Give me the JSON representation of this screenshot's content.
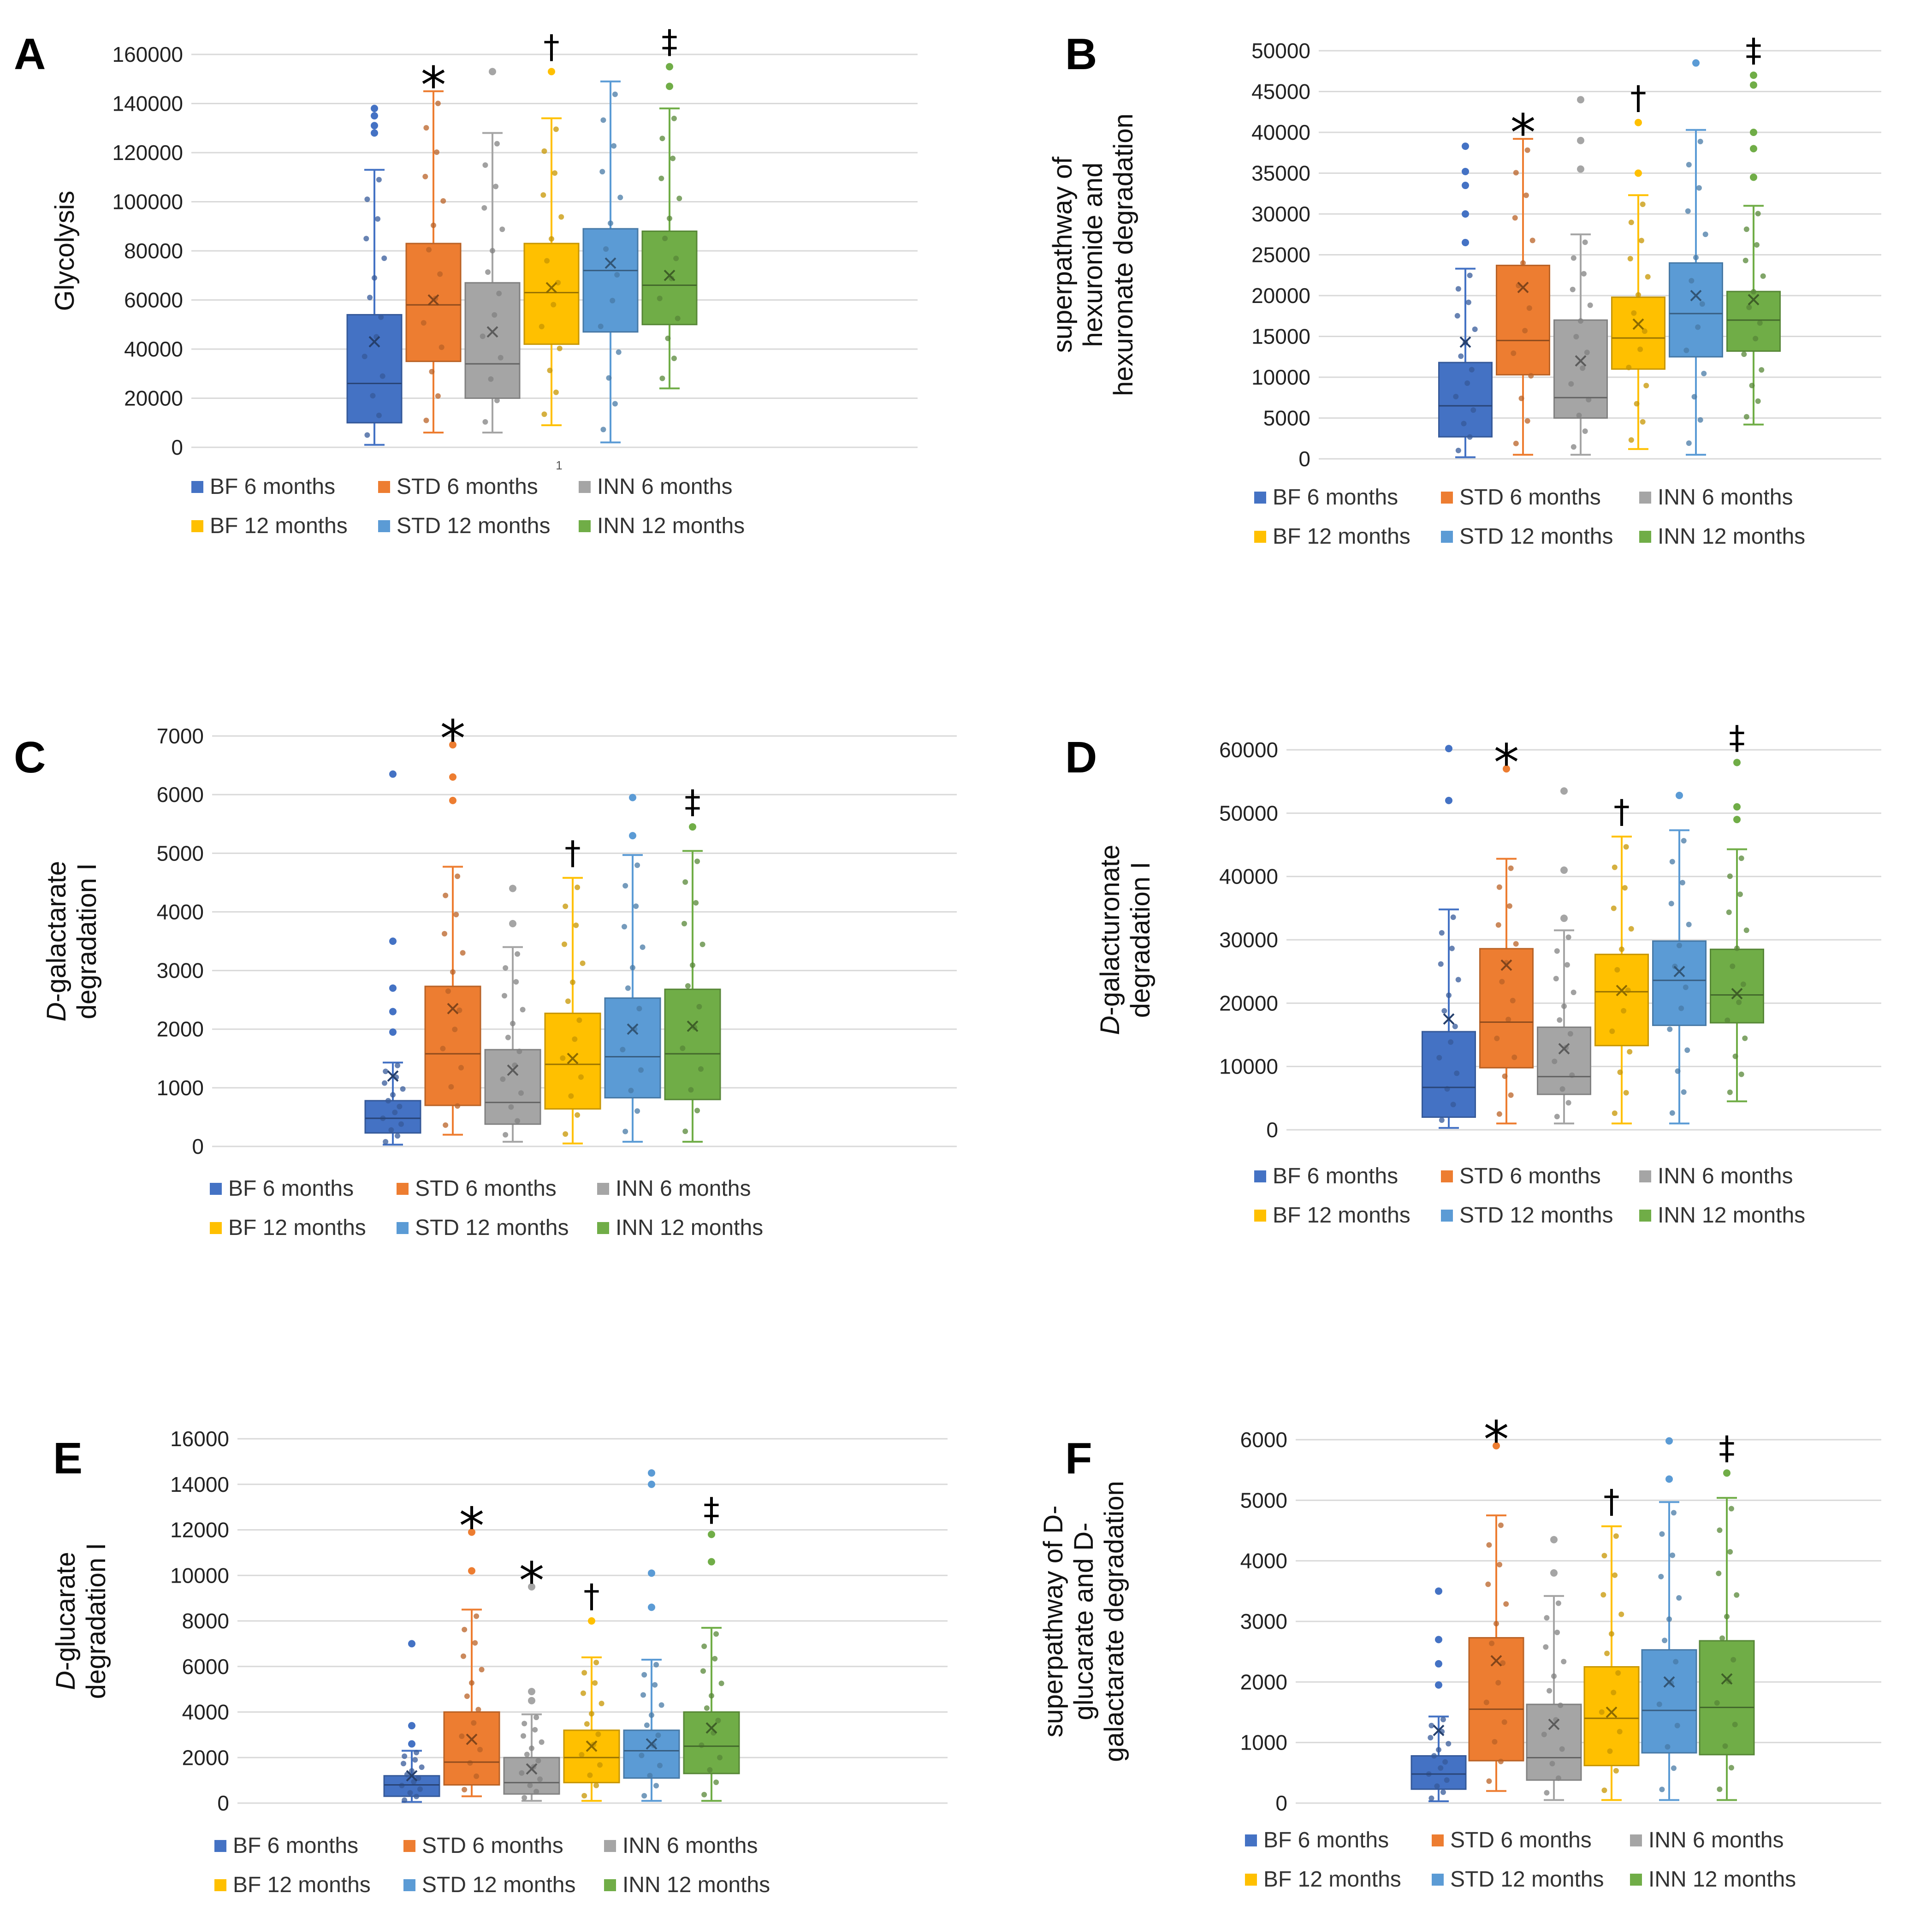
{
  "legend": {
    "labels": [
      "BF 6 months",
      "STD 6 months",
      "INN 6 months",
      "BF 12 months",
      "STD 12 months",
      "INN 12 months"
    ],
    "colors": [
      "#4472C4",
      "#ED7D31",
      "#A5A5A5",
      "#FFC000",
      "#5B9BD5",
      "#70AD47"
    ]
  },
  "chart_data": [
    {
      "panel": "A",
      "type": "box",
      "ylabel": [
        "Glycolysis"
      ],
      "ylabel_italic_prefix": "",
      "ylim": [
        0,
        160000
      ],
      "yticks": [
        "0",
        "20000",
        "40000",
        "60000",
        "80000",
        "100000",
        "120000",
        "140000",
        "160000"
      ],
      "extra_label": "1",
      "groups": [
        {
          "name": "BF 6 months",
          "min": 1000,
          "q1": 10000,
          "median": 26000,
          "q3": 54000,
          "max": 113000,
          "mean": 43000,
          "outliers": [
            128000,
            131000,
            135000,
            138000
          ],
          "sig": ""
        },
        {
          "name": "STD 6 months",
          "min": 6000,
          "q1": 35000,
          "median": 58000,
          "q3": 83000,
          "max": 145000,
          "mean": 60000,
          "outliers": [],
          "sig": "*"
        },
        {
          "name": "INN 6 months",
          "min": 6000,
          "q1": 20000,
          "median": 34000,
          "q3": 67000,
          "max": 128000,
          "mean": 47000,
          "outliers": [
            153000
          ],
          "sig": ""
        },
        {
          "name": "BF 12 months",
          "min": 9000,
          "q1": 42000,
          "median": 63000,
          "q3": 83000,
          "max": 134000,
          "mean": 65000,
          "outliers": [
            153000
          ],
          "sig": "†"
        },
        {
          "name": "STD 12 months",
          "min": 2000,
          "q1": 47000,
          "median": 72000,
          "q3": 89000,
          "max": 149000,
          "mean": 75000,
          "outliers": [],
          "sig": ""
        },
        {
          "name": "INN 12 months",
          "min": 24000,
          "q1": 50000,
          "median": 66000,
          "q3": 88000,
          "max": 138000,
          "mean": 70000,
          "outliers": [
            147000,
            155000
          ],
          "sig": "‡"
        }
      ]
    },
    {
      "panel": "B",
      "type": "box",
      "ylabel": [
        "superpathway of",
        "hexuronide and",
        "hexuronate degradation"
      ],
      "ylabel_italic_prefix": "",
      "ylim": [
        0,
        50000
      ],
      "yticks": [
        "0",
        "5000",
        "10000",
        "15000",
        "20000",
        "25000",
        "30000",
        "35000",
        "40000",
        "45000",
        "50000"
      ],
      "extra_label": "",
      "groups": [
        {
          "name": "BF 6 months",
          "min": 200,
          "q1": 2700,
          "median": 6500,
          "q3": 11800,
          "max": 23300,
          "mean": 14300,
          "outliers": [
            26500,
            30000,
            33500,
            35200,
            38300
          ],
          "sig": ""
        },
        {
          "name": "STD 6 months",
          "min": 500,
          "q1": 10300,
          "median": 14500,
          "q3": 23700,
          "max": 39200,
          "mean": 21000,
          "outliers": [],
          "sig": "*"
        },
        {
          "name": "INN 6 months",
          "min": 500,
          "q1": 5000,
          "median": 7500,
          "q3": 17000,
          "max": 27500,
          "mean": 12000,
          "outliers": [
            35500,
            39000,
            44000
          ],
          "sig": ""
        },
        {
          "name": "BF 12 months",
          "min": 1200,
          "q1": 11000,
          "median": 14800,
          "q3": 19800,
          "max": 32300,
          "mean": 16500,
          "outliers": [
            35000,
            41200
          ],
          "sig": "†"
        },
        {
          "name": "STD 12 months",
          "min": 500,
          "q1": 12500,
          "median": 17800,
          "q3": 24000,
          "max": 40300,
          "mean": 20000,
          "outliers": [
            48500
          ],
          "sig": ""
        },
        {
          "name": "INN 12 months",
          "min": 4200,
          "q1": 13200,
          "median": 17000,
          "q3": 20500,
          "max": 31000,
          "mean": 19500,
          "outliers": [
            34500,
            38000,
            40000,
            45800,
            47000
          ],
          "sig": "‡"
        }
      ]
    },
    {
      "panel": "C",
      "type": "box",
      "ylabel": [
        "D-galactarate",
        "degradation I"
      ],
      "ylabel_italic_prefix": "D",
      "ylim": [
        0,
        7000
      ],
      "yticks": [
        "0",
        "1000",
        "2000",
        "3000",
        "4000",
        "5000",
        "6000",
        "7000"
      ],
      "extra_label": "",
      "groups": [
        {
          "name": "BF 6 months",
          "min": 30,
          "q1": 230,
          "median": 480,
          "q3": 780,
          "max": 1430,
          "mean": 1200,
          "outliers": [
            1950,
            2300,
            2700,
            3500,
            6350
          ],
          "sig": ""
        },
        {
          "name": "STD 6 months",
          "min": 200,
          "q1": 700,
          "median": 1580,
          "q3": 2730,
          "max": 4770,
          "mean": 2350,
          "outliers": [
            5900,
            6300,
            6850
          ],
          "sig": "*"
        },
        {
          "name": "INN 6 months",
          "min": 80,
          "q1": 380,
          "median": 750,
          "q3": 1650,
          "max": 3400,
          "mean": 1300,
          "outliers": [
            3800,
            4400
          ],
          "sig": ""
        },
        {
          "name": "BF 12 months",
          "min": 50,
          "q1": 640,
          "median": 1400,
          "q3": 2270,
          "max": 4580,
          "mean": 1500,
          "outliers": [],
          "sig": "†"
        },
        {
          "name": "STD 12 months",
          "min": 80,
          "q1": 830,
          "median": 1530,
          "q3": 2530,
          "max": 4970,
          "mean": 2000,
          "outliers": [
            5300,
            5950
          ],
          "sig": ""
        },
        {
          "name": "INN 12 months",
          "min": 80,
          "q1": 800,
          "median": 1580,
          "q3": 2680,
          "max": 5040,
          "mean": 2050,
          "outliers": [
            5450
          ],
          "sig": "‡"
        }
      ]
    },
    {
      "panel": "D",
      "type": "box",
      "ylabel": [
        "D-galacturonate",
        "degradation I"
      ],
      "ylabel_italic_prefix": "D",
      "ylim": [
        0,
        60000
      ],
      "yticks": [
        "0",
        "10000",
        "20000",
        "30000",
        "40000",
        "50000",
        "60000"
      ],
      "extra_label": "",
      "groups": [
        {
          "name": "BF 6 months",
          "min": 300,
          "q1": 2000,
          "median": 6700,
          "q3": 15500,
          "max": 34800,
          "mean": 17500,
          "outliers": [
            52000,
            60200
          ],
          "sig": ""
        },
        {
          "name": "STD 6 months",
          "min": 1000,
          "q1": 9800,
          "median": 17000,
          "q3": 28600,
          "max": 42800,
          "mean": 26000,
          "outliers": [
            57000
          ],
          "sig": "*"
        },
        {
          "name": "INN 6 months",
          "min": 1000,
          "q1": 5600,
          "median": 8400,
          "q3": 16200,
          "max": 31500,
          "mean": 12800,
          "outliers": [
            33400,
            41000,
            53500
          ],
          "sig": ""
        },
        {
          "name": "BF 12 months",
          "min": 1000,
          "q1": 13300,
          "median": 21800,
          "q3": 27700,
          "max": 46300,
          "mean": 22000,
          "outliers": [],
          "sig": "†"
        },
        {
          "name": "STD 12 months",
          "min": 1000,
          "q1": 16500,
          "median": 23600,
          "q3": 29800,
          "max": 47300,
          "mean": 25000,
          "outliers": [
            52800
          ],
          "sig": ""
        },
        {
          "name": "INN 12 months",
          "min": 4500,
          "q1": 16900,
          "median": 21300,
          "q3": 28500,
          "max": 44300,
          "mean": 21500,
          "outliers": [
            49000,
            51000,
            58000
          ],
          "sig": "‡"
        }
      ]
    },
    {
      "panel": "E",
      "type": "box",
      "ylabel": [
        "D-glucarate",
        "degradation I"
      ],
      "ylabel_italic_prefix": "D",
      "ylim": [
        0,
        16000
      ],
      "yticks": [
        "0",
        "2000",
        "4000",
        "6000",
        "8000",
        "10000",
        "12000",
        "14000",
        "16000"
      ],
      "extra_label": "",
      "groups": [
        {
          "name": "BF 6 months",
          "min": 50,
          "q1": 300,
          "median": 800,
          "q3": 1200,
          "max": 2300,
          "mean": 1200,
          "outliers": [
            2600,
            3400,
            7000
          ],
          "sig": ""
        },
        {
          "name": "STD 6 months",
          "min": 300,
          "q1": 800,
          "median": 1800,
          "q3": 4000,
          "max": 8500,
          "mean": 2800,
          "outliers": [
            10200,
            11900
          ],
          "sig": "*"
        },
        {
          "name": "INN 6 months",
          "min": 100,
          "q1": 400,
          "median": 900,
          "q3": 2000,
          "max": 3900,
          "mean": 1500,
          "outliers": [
            4500,
            4900,
            9500
          ],
          "sig": "*"
        },
        {
          "name": "BF 12 months",
          "min": 100,
          "q1": 900,
          "median": 2000,
          "q3": 3200,
          "max": 6400,
          "mean": 2500,
          "outliers": [
            8000
          ],
          "sig": "†"
        },
        {
          "name": "STD 12 months",
          "min": 100,
          "q1": 1100,
          "median": 2300,
          "q3": 3200,
          "max": 6300,
          "mean": 2600,
          "outliers": [
            8600,
            10100,
            14000,
            14500
          ],
          "sig": ""
        },
        {
          "name": "INN 12 months",
          "min": 100,
          "q1": 1300,
          "median": 2500,
          "q3": 4000,
          "max": 7700,
          "mean": 3300,
          "outliers": [
            10600,
            11800
          ],
          "sig": "‡"
        }
      ]
    },
    {
      "panel": "F",
      "type": "box",
      "ylabel": [
        "superpathway of D-",
        "glucarate and D-",
        "galactarate degradation"
      ],
      "ylabel_italic_prefix": "",
      "ylim": [
        0,
        6000
      ],
      "yticks": [
        "0",
        "1000",
        "2000",
        "3000",
        "4000",
        "5000",
        "6000"
      ],
      "extra_label": "",
      "groups": [
        {
          "name": "BF 6 months",
          "min": 30,
          "q1": 230,
          "median": 480,
          "q3": 780,
          "max": 1430,
          "mean": 1200,
          "outliers": [
            1950,
            2300,
            2700,
            3500
          ],
          "sig": ""
        },
        {
          "name": "STD 6 months",
          "min": 200,
          "q1": 700,
          "median": 1550,
          "q3": 2730,
          "max": 4750,
          "mean": 2350,
          "outliers": [
            5900
          ],
          "sig": "*"
        },
        {
          "name": "INN 6 months",
          "min": 50,
          "q1": 380,
          "median": 750,
          "q3": 1630,
          "max": 3420,
          "mean": 1300,
          "outliers": [
            3800,
            4350
          ],
          "sig": ""
        },
        {
          "name": "BF 12 months",
          "min": 50,
          "q1": 620,
          "median": 1400,
          "q3": 2250,
          "max": 4570,
          "mean": 1500,
          "outliers": [],
          "sig": "†"
        },
        {
          "name": "STD 12 months",
          "min": 50,
          "q1": 830,
          "median": 1530,
          "q3": 2530,
          "max": 4970,
          "mean": 2000,
          "outliers": [
            5350,
            5980
          ],
          "sig": ""
        },
        {
          "name": "INN 12 months",
          "min": 50,
          "q1": 800,
          "median": 1580,
          "q3": 2680,
          "max": 5040,
          "mean": 2050,
          "outliers": [
            5450
          ],
          "sig": "‡"
        }
      ]
    }
  ]
}
